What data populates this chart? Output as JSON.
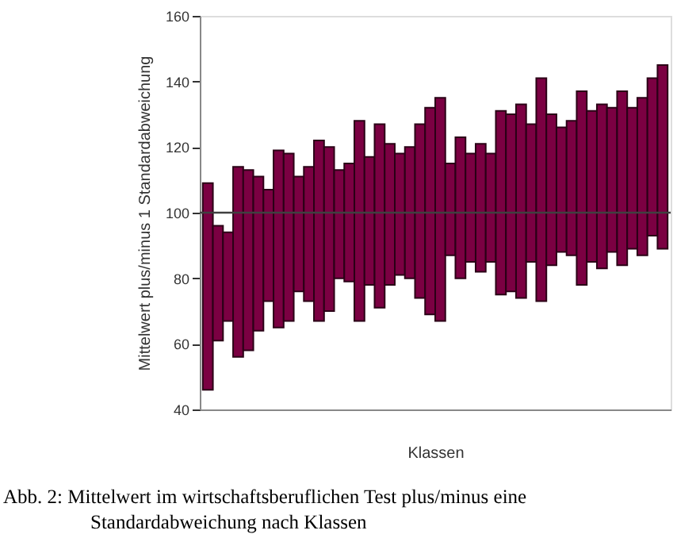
{
  "chart_data": {
    "type": "bar",
    "xlabel": "Klassen",
    "ylabel": "Mittelwert plus/minus 1 Standardabweichung",
    "categories": [
      null,
      null,
      null,
      null,
      null,
      null,
      null,
      null,
      null,
      null,
      null,
      null,
      null,
      null,
      null,
      null,
      null,
      null,
      null,
      null,
      null,
      null,
      null,
      null,
      null,
      null,
      null,
      null,
      null,
      null,
      null,
      null,
      null,
      null,
      null,
      null,
      null,
      null,
      null,
      null,
      null,
      null,
      null,
      null,
      null,
      null
    ],
    "series": [
      {
        "color": "#7b0042",
        "base": [
          46,
          61,
          67,
          56,
          58,
          64,
          73,
          65,
          67,
          76,
          73,
          67,
          70,
          80,
          79,
          67,
          78,
          71,
          78,
          81,
          80,
          74,
          69,
          67,
          87,
          80,
          85,
          82,
          85,
          75,
          76,
          74,
          85,
          73,
          84,
          88,
          87,
          78,
          85,
          83,
          88,
          84,
          89,
          87,
          93,
          89
        ],
        "values": [
          63,
          35,
          27,
          58,
          55,
          47,
          34,
          54,
          51,
          35,
          41,
          55,
          50,
          33,
          36,
          61,
          39,
          56,
          43,
          37,
          40,
          53,
          63,
          68,
          28,
          43,
          33,
          39,
          33,
          56,
          54,
          59,
          42,
          68,
          46,
          38,
          41,
          59,
          46,
          50,
          44,
          53,
          43,
          48,
          48,
          56
        ]
      }
    ],
    "ylim": [
      40,
      160
    ],
    "yticks": [
      40,
      60,
      80,
      100,
      120,
      140,
      160
    ],
    "grid": false,
    "ref_lines": [
      {
        "axis": "y",
        "value": 100,
        "color": "#404040"
      }
    ],
    "annotations": [
      "Abb. 2: Mittelwert im wirtschaftsberuflichen Test plus/minus eine Standardabweichung nach Klassen"
    ]
  }
}
